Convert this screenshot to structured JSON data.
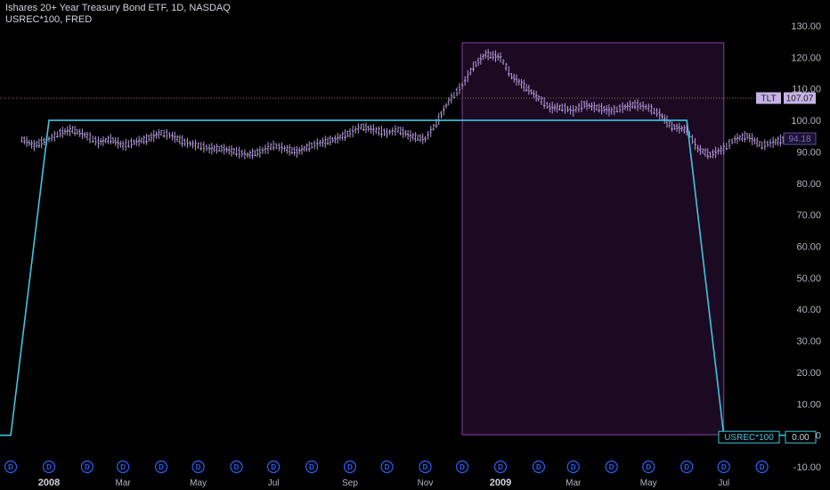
{
  "header": {
    "title": "Ishares 20+ Year Treasury Bond ETF, 1D, NASDAQ",
    "subtitle": "USREC*100, FRED"
  },
  "colors": {
    "background": "#000000",
    "bars": "#b39ddb",
    "recession_line": "#3ec6e0",
    "shade_fill": "#1c0a22",
    "shade_border": "#8e3aa8",
    "price_dotted": "#8d6e63",
    "event_badge": "#2962ff"
  },
  "chart_data": [
    {
      "type": "ohlc",
      "series_name": "TLT",
      "last_value_label": "107.07",
      "current_label_value": "94.18",
      "x": [
        "2007-12-10",
        "2007-12-20",
        "2008-01-01",
        "2008-01-10",
        "2008-01-20",
        "2008-02-01",
        "2008-02-10",
        "2008-02-20",
        "2008-03-01",
        "2008-03-10",
        "2008-03-20",
        "2008-04-01",
        "2008-04-10",
        "2008-04-20",
        "2008-05-01",
        "2008-05-10",
        "2008-05-20",
        "2008-06-01",
        "2008-06-10",
        "2008-06-20",
        "2008-07-01",
        "2008-07-10",
        "2008-07-20",
        "2008-08-01",
        "2008-08-10",
        "2008-08-20",
        "2008-09-01",
        "2008-09-10",
        "2008-09-20",
        "2008-10-01",
        "2008-10-10",
        "2008-10-20",
        "2008-11-01",
        "2008-11-10",
        "2008-11-20",
        "2008-12-01",
        "2008-12-10",
        "2008-12-20",
        "2009-01-01",
        "2009-01-10",
        "2009-01-20",
        "2009-02-01",
        "2009-02-10",
        "2009-02-20",
        "2009-03-01",
        "2009-03-10",
        "2009-03-20",
        "2009-04-01",
        "2009-04-10",
        "2009-04-20",
        "2009-05-01",
        "2009-05-10",
        "2009-05-20",
        "2009-06-01",
        "2009-06-10",
        "2009-06-20",
        "2009-07-01",
        "2009-07-10",
        "2009-07-20",
        "2009-08-01",
        "2009-08-10",
        "2009-08-20"
      ],
      "y": [
        94,
        92,
        94,
        96,
        97,
        95,
        93,
        94,
        92,
        93,
        94,
        96,
        95,
        93,
        92,
        91,
        91,
        90,
        89,
        90,
        92,
        91,
        90,
        92,
        93,
        94,
        96,
        98,
        97,
        96,
        97,
        95,
        94,
        99,
        106,
        111,
        117,
        121,
        120,
        114,
        111,
        107,
        104,
        104,
        103,
        105,
        104,
        103,
        104,
        105,
        104,
        102,
        98,
        97,
        91,
        89,
        91,
        94,
        95,
        92,
        93,
        94
      ],
      "ylim": [
        -10,
        130
      ]
    },
    {
      "type": "line",
      "series_name": "USREC*100",
      "last_value_label": "0.00",
      "x": [
        "2007-11-01",
        "2007-12-01",
        "2008-01-01",
        "2009-06-01",
        "2009-07-01",
        "2009-08-20"
      ],
      "y": [
        0,
        0,
        100,
        100,
        0,
        0
      ]
    }
  ],
  "shaded_range": {
    "start": "2008-12-01",
    "end": "2009-07-01"
  },
  "y_axis": {
    "ticks": [
      "130.00",
      "120.00",
      "110.00",
      "100.00",
      "90.00",
      "80.00",
      "70.00",
      "60.00",
      "50.00",
      "40.00",
      "30.00",
      "20.00",
      "10.00",
      "0.00",
      "-10.00"
    ]
  },
  "x_axis": {
    "labels": [
      {
        "text": "2008",
        "date": "2008-01-01",
        "bold": true
      },
      {
        "text": "Mar",
        "date": "2008-03-01",
        "bold": false
      },
      {
        "text": "May",
        "date": "2008-05-01",
        "bold": false
      },
      {
        "text": "Jul",
        "date": "2008-07-01",
        "bold": false
      },
      {
        "text": "Sep",
        "date": "2008-09-01",
        "bold": false
      },
      {
        "text": "Nov",
        "date": "2008-11-01",
        "bold": false
      },
      {
        "text": "2009",
        "date": "2009-01-01",
        "bold": true
      },
      {
        "text": "Mar",
        "date": "2009-03-01",
        "bold": false
      },
      {
        "text": "May",
        "date": "2009-05-01",
        "bold": false
      },
      {
        "text": "Jul",
        "date": "2009-07-01",
        "bold": false
      }
    ]
  },
  "events": {
    "label": "D",
    "dates": [
      "2007-12-01",
      "2008-01-01",
      "2008-02-01",
      "2008-03-01",
      "2008-04-01",
      "2008-05-01",
      "2008-06-01",
      "2008-07-01",
      "2008-08-01",
      "2008-09-01",
      "2008-10-01",
      "2008-11-01",
      "2008-12-01",
      "2009-01-01",
      "2009-02-01",
      "2009-03-01",
      "2009-04-01",
      "2009-05-01",
      "2009-06-01",
      "2009-07-01",
      "2009-08-01"
    ]
  }
}
